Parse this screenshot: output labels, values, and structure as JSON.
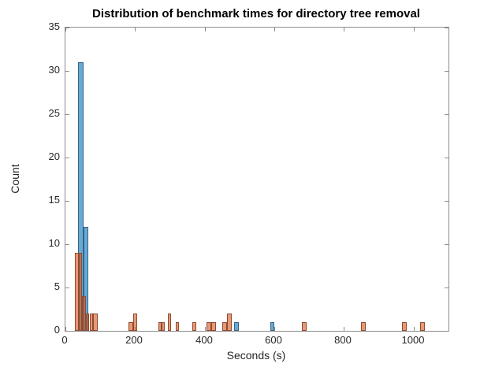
{
  "figure": {
    "background": "#ffffff",
    "axis_color": "#8c8c8c",
    "tick_label_color": "#262626"
  },
  "chart_data": {
    "type": "histogram",
    "title": "Distribution of benchmark times for directory tree removal",
    "xlabel": "Seconds (s)",
    "ylabel": "Count",
    "xlim": [
      0,
      1100
    ],
    "ylim": [
      0,
      35
    ],
    "x_ticks": [
      0,
      200,
      400,
      600,
      800,
      1000
    ],
    "y_ticks": [
      0,
      5,
      10,
      15,
      20,
      25,
      30,
      35
    ],
    "grid": false,
    "legend": null,
    "series": [
      {
        "name": "blue-histogram",
        "base_color": "#0072BD",
        "face": "rgba(0,114,189,0.6)",
        "edge": "#3a637f",
        "bins": [
          {
            "x0": 37,
            "x1": 52,
            "count": 31
          },
          {
            "x0": 52,
            "x1": 66,
            "count": 12
          },
          {
            "x0": 485,
            "x1": 499,
            "count": 1
          },
          {
            "x0": 588,
            "x1": 601,
            "count": 1
          }
        ]
      },
      {
        "name": "orange-histogram",
        "base_color": "#D95319",
        "face": "rgba(217,83,25,0.6)",
        "edge": "#8d4b31",
        "bins": [
          {
            "x0": 27,
            "x1": 38,
            "count": 9
          },
          {
            "x0": 38,
            "x1": 48,
            "count": 9
          },
          {
            "x0": 48,
            "x1": 59,
            "count": 4
          },
          {
            "x0": 59,
            "x1": 69,
            "count": 2
          },
          {
            "x0": 69,
            "x1": 80,
            "count": 2
          },
          {
            "x0": 80,
            "x1": 93,
            "count": 2
          },
          {
            "x0": 181,
            "x1": 194,
            "count": 1
          },
          {
            "x0": 194,
            "x1": 206,
            "count": 2
          },
          {
            "x0": 267,
            "x1": 276,
            "count": 1
          },
          {
            "x0": 276,
            "x1": 285,
            "count": 1
          },
          {
            "x0": 293,
            "x1": 304,
            "count": 2
          },
          {
            "x0": 316,
            "x1": 327,
            "count": 1
          },
          {
            "x0": 365,
            "x1": 376,
            "count": 1
          },
          {
            "x0": 406,
            "x1": 419,
            "count": 1
          },
          {
            "x0": 419,
            "x1": 432,
            "count": 1
          },
          {
            "x0": 451,
            "x1": 464,
            "count": 1
          },
          {
            "x0": 464,
            "x1": 478,
            "count": 2
          },
          {
            "x0": 678,
            "x1": 692,
            "count": 1
          },
          {
            "x0": 848,
            "x1": 862,
            "count": 1
          },
          {
            "x0": 966,
            "x1": 980,
            "count": 1
          },
          {
            "x0": 1019,
            "x1": 1033,
            "count": 1
          }
        ]
      }
    ]
  }
}
